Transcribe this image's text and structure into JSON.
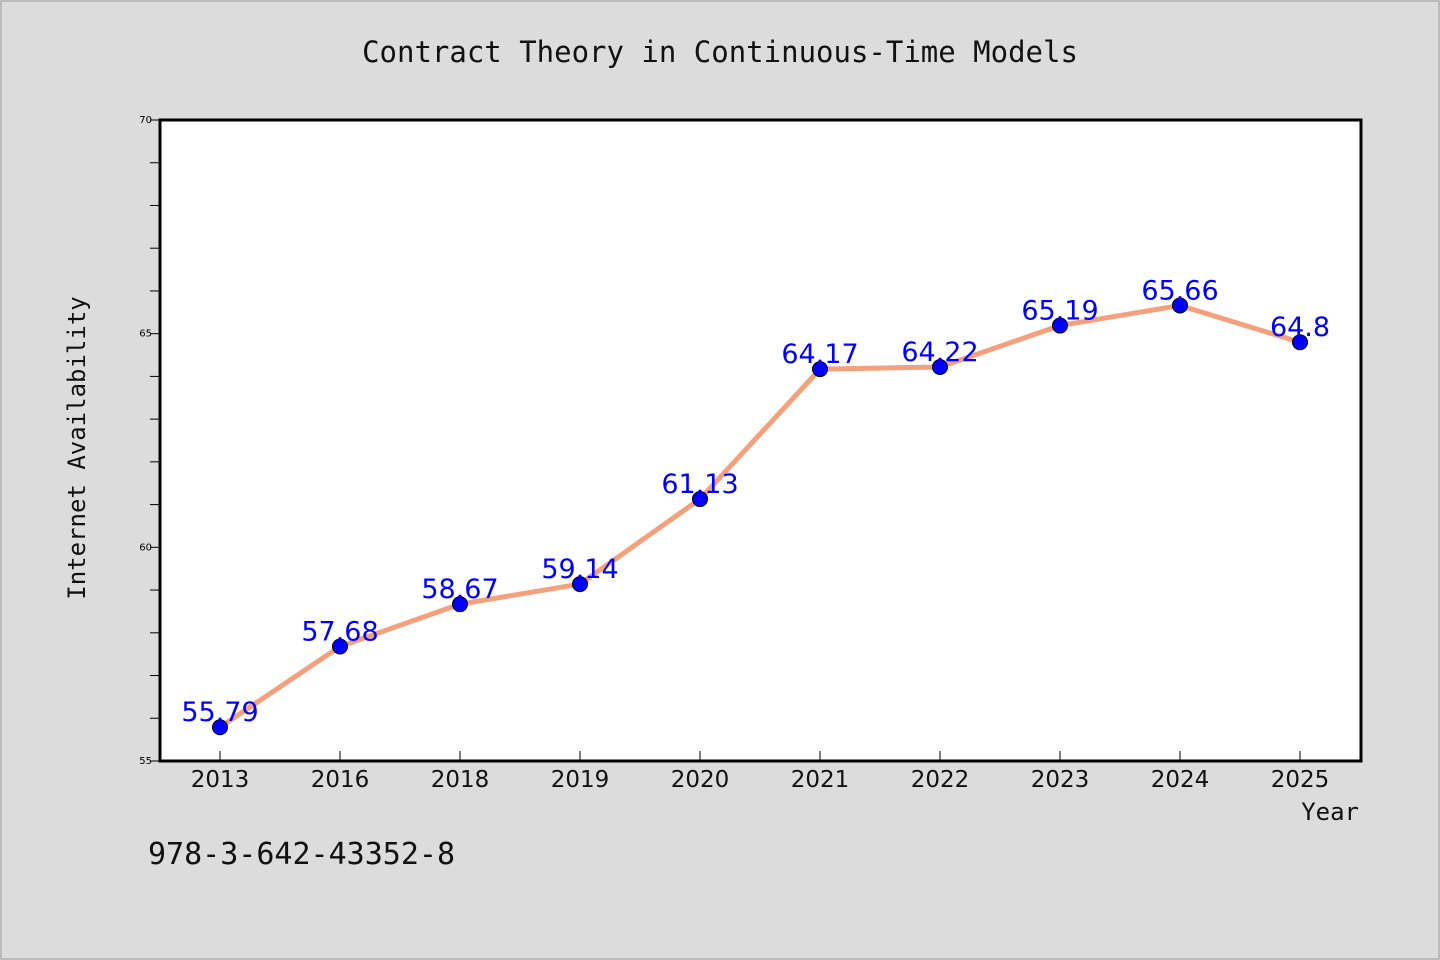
{
  "chart_data": {
    "type": "line",
    "title": "Contract Theory in Continuous-Time Models",
    "xlabel": "Year",
    "ylabel": "Internet Availability",
    "categories": [
      "2013",
      "2016",
      "2018",
      "2019",
      "2020",
      "2021",
      "2022",
      "2023",
      "2024",
      "2025"
    ],
    "series": [
      {
        "values": [
          55.79,
          57.68,
          58.67,
          59.14,
          61.13,
          64.17,
          64.22,
          65.19,
          65.66,
          64.8
        ],
        "labels": [
          "55.79",
          "57.68",
          "58.67",
          "59.14",
          "61.13",
          "64.17",
          "64.22",
          "65.19",
          "65.66",
          "64.8"
        ]
      }
    ],
    "ylim": [
      55,
      70
    ],
    "y_major_ticks": [
      "55",
      "60",
      "65",
      "70"
    ],
    "y_minor_step": 1,
    "grid": false,
    "line_color": "#f4a07c",
    "marker_color": "#0000ff",
    "label_color": "#0000ff"
  },
  "footer": {
    "isbn": "978-3-642-43352-8"
  }
}
